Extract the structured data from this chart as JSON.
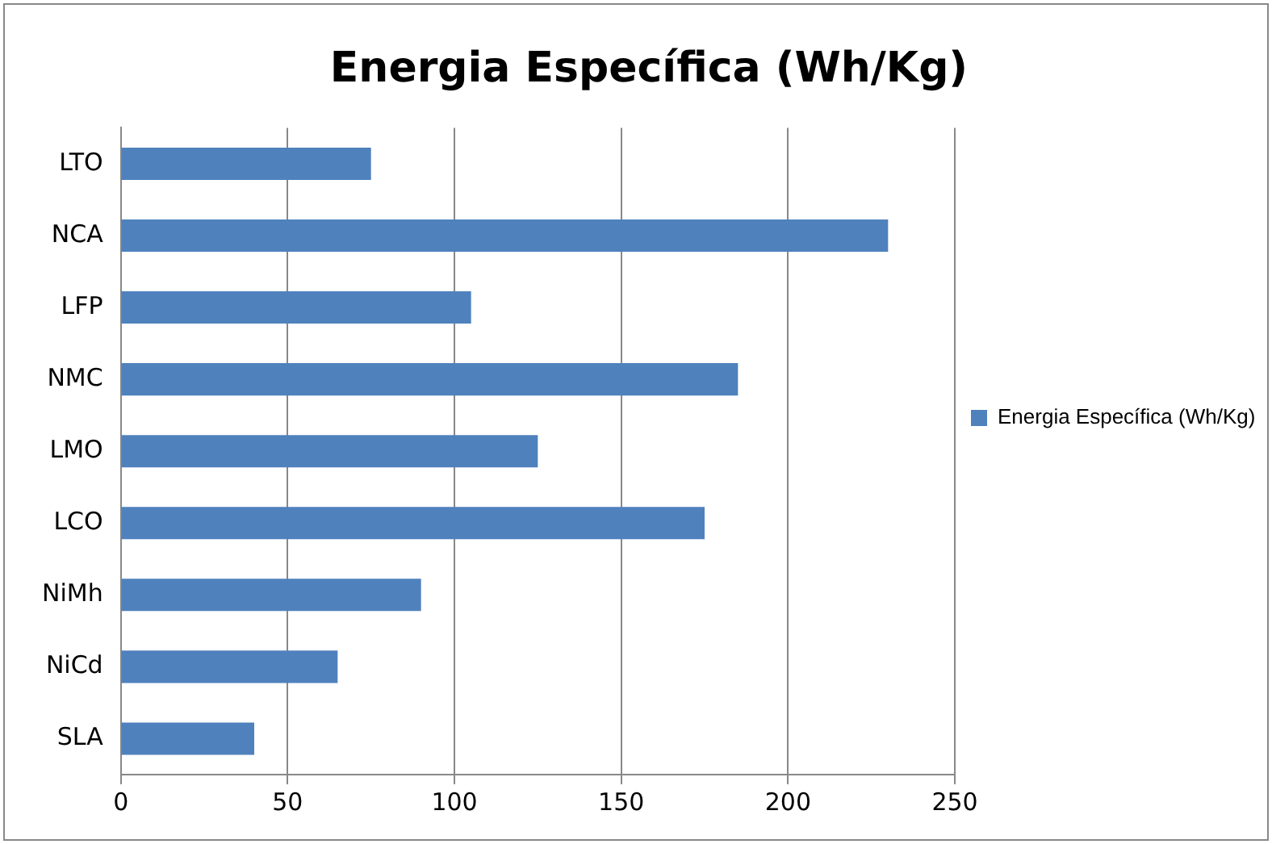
{
  "chart_data": {
    "type": "bar",
    "orientation": "horizontal",
    "title": "Energia Específica (Wh/Kg)",
    "categories": [
      "LTO",
      "NCA",
      "LFP",
      "NMC",
      "LMO",
      "LCO",
      "NiMh",
      "NiCd",
      "SLA"
    ],
    "series": [
      {
        "name": "Energia Específica (Wh/Kg)",
        "color": "#4f81bd",
        "values": [
          75,
          230,
          105,
          185,
          125,
          175,
          90,
          65,
          40
        ]
      }
    ],
    "xlim": [
      0,
      250
    ],
    "xticks": [
      0,
      50,
      100,
      150,
      200,
      250
    ],
    "grid": "x",
    "legend": "right"
  }
}
